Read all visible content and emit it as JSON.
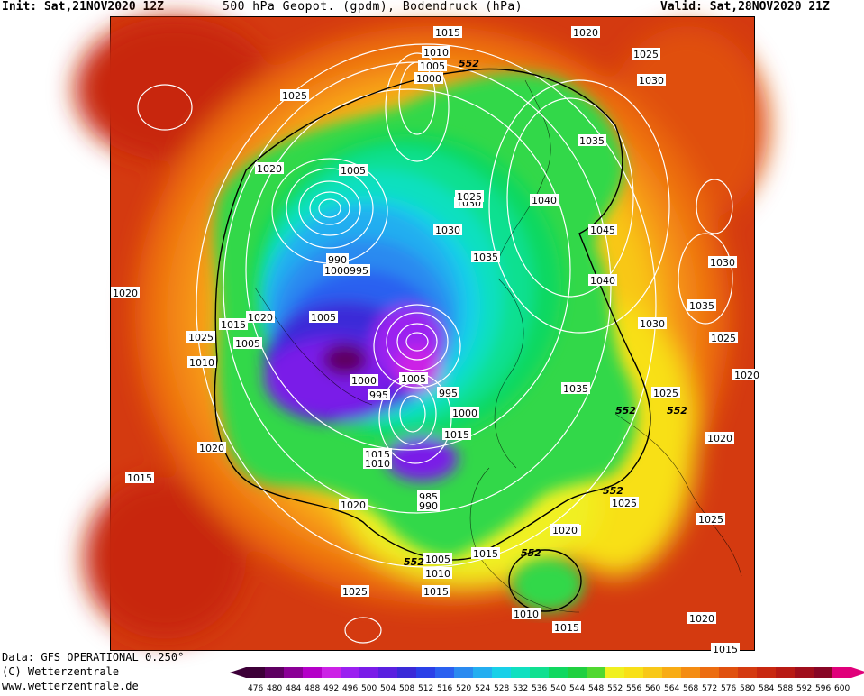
{
  "header": {
    "init": "Init: Sat,21NOV2020 12Z",
    "title": "500 hPa Geopot. (gpdm), Bodendruck (hPa)",
    "valid": "Valid: Sat,28NOV2020 21Z"
  },
  "footer": {
    "line1": "Data: GFS OPERATIONAL 0.250°",
    "line2": "(C) Wetterzentrale",
    "line3": "www.wetterzentrale.de"
  },
  "legend": {
    "values": [
      "476",
      "480",
      "484",
      "488",
      "492",
      "496",
      "500",
      "504",
      "508",
      "512",
      "516",
      "520",
      "524",
      "528",
      "532",
      "536",
      "540",
      "544",
      "548",
      "552",
      "556",
      "560",
      "564",
      "568",
      "572",
      "576",
      "580",
      "584",
      "588",
      "592",
      "596",
      "600"
    ],
    "colors": [
      "#3d0038",
      "#5e0061",
      "#8a0096",
      "#b400c8",
      "#cc22e6",
      "#9b20f0",
      "#7a1ce8",
      "#5a20e0",
      "#3a2ad8",
      "#2a40e8",
      "#2a60f0",
      "#2a8af0",
      "#24aef0",
      "#18d0e8",
      "#10e0c0",
      "#10e090",
      "#10d860",
      "#20d040",
      "#50d830",
      "#f0f020",
      "#f8e018",
      "#f8c818",
      "#f8ac14",
      "#f48c12",
      "#ec6c10",
      "#e0500e",
      "#d43a10",
      "#c82810",
      "#b81a14",
      "#a00e1c",
      "#880626",
      "#e0007a"
    ]
  },
  "map": {
    "isobar_labels": [
      {
        "t": "1015"
      },
      {
        "t": "1020"
      },
      {
        "t": "1025"
      },
      {
        "t": "1010"
      },
      {
        "t": "1005"
      },
      {
        "t": "1000"
      },
      {
        "t": "1025"
      },
      {
        "t": "1030"
      },
      {
        "t": "1035"
      },
      {
        "t": "1020"
      },
      {
        "t": "1005"
      },
      {
        "t": "1040"
      },
      {
        "t": "1045"
      },
      {
        "t": "1030"
      },
      {
        "t": "1025"
      },
      {
        "t": "1030"
      },
      {
        "t": "1035"
      },
      {
        "t": "1040"
      },
      {
        "t": "990"
      },
      {
        "t": "1000995"
      },
      {
        "t": "1030"
      },
      {
        "t": "1035"
      },
      {
        "t": "1020"
      },
      {
        "t": "1020"
      },
      {
        "t": "1015"
      },
      {
        "t": "1005"
      },
      {
        "t": "1025"
      },
      {
        "t": "1005"
      },
      {
        "t": "1010"
      },
      {
        "t": "1030"
      },
      {
        "t": "1025"
      },
      {
        "t": "1000"
      },
      {
        "t": "1005"
      },
      {
        "t": "995"
      },
      {
        "t": "995"
      },
      {
        "t": "1000"
      },
      {
        "t": "1020"
      },
      {
        "t": "1035"
      },
      {
        "t": "1025"
      },
      {
        "t": "1020"
      },
      {
        "t": "1020"
      },
      {
        "t": "1015"
      },
      {
        "t": "1010"
      },
      {
        "t": "1015"
      },
      {
        "t": "985"
      },
      {
        "t": "990"
      },
      {
        "t": "1015"
      },
      {
        "t": "1020"
      },
      {
        "t": "1025"
      },
      {
        "t": "1025"
      },
      {
        "t": "1015"
      },
      {
        "t": "1020"
      },
      {
        "t": "1005"
      },
      {
        "t": "1010"
      },
      {
        "t": "1015"
      },
      {
        "t": "1020"
      },
      {
        "t": "1025"
      },
      {
        "t": "1010"
      },
      {
        "t": "1015"
      },
      {
        "t": "1020"
      },
      {
        "t": "1015"
      }
    ],
    "contour_552_label": "552",
    "contour_552_count": 6
  }
}
